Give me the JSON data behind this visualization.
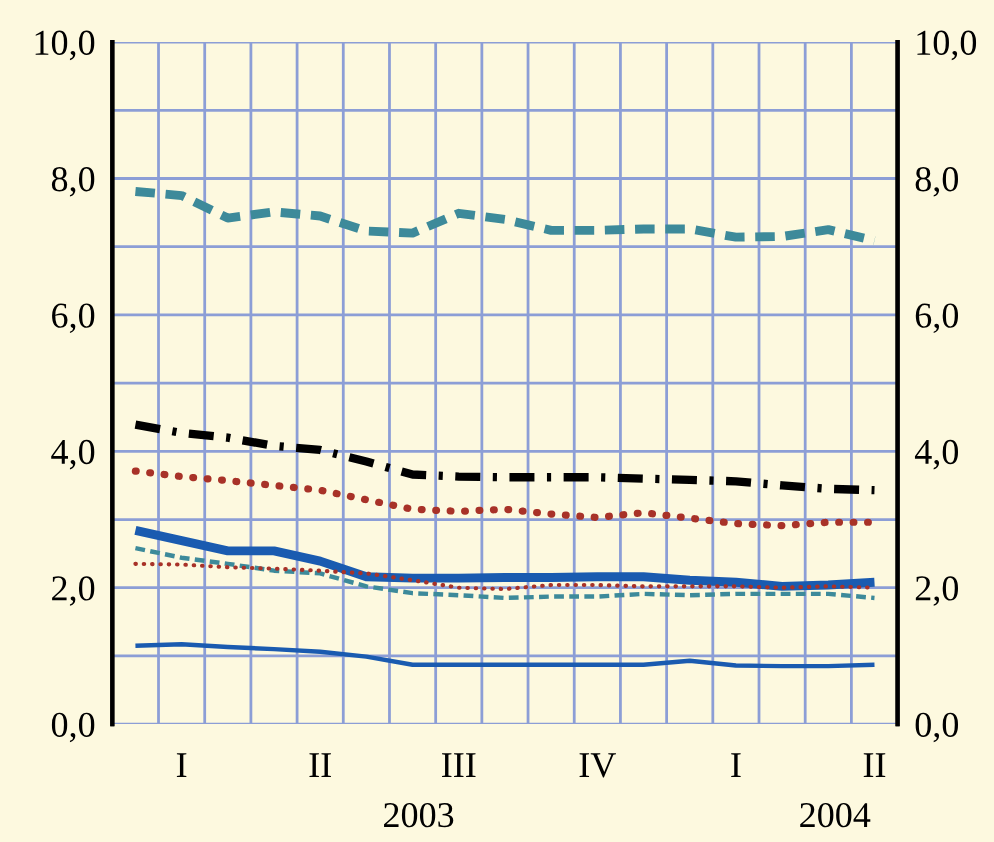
{
  "chart_data": {
    "type": "line",
    "categories": [
      null,
      "I",
      null,
      null,
      "II",
      null,
      null,
      "III",
      null,
      null,
      "IV",
      null,
      null,
      "I",
      null,
      null,
      "II"
    ],
    "ylim": [
      0,
      10
    ],
    "yticks": [
      {
        "value": 0,
        "label": "0,0"
      },
      {
        "value": 1,
        "label": null
      },
      {
        "value": 2,
        "label": "2,0"
      },
      {
        "value": 3,
        "label": null
      },
      {
        "value": 4,
        "label": "4,0"
      },
      {
        "value": 5,
        "label": null
      },
      {
        "value": 6,
        "label": "6,0"
      },
      {
        "value": 7,
        "label": null
      },
      {
        "value": 8,
        "label": "8,0"
      },
      {
        "value": 9,
        "label": null
      },
      {
        "value": 10,
        "label": "10,0"
      }
    ],
    "y2lim": [
      0,
      10
    ],
    "y2ticks": [
      {
        "value": 0,
        "label": "0,0"
      },
      {
        "value": 2,
        "label": "2,0"
      },
      {
        "value": 4,
        "label": "4,0"
      },
      {
        "value": 6,
        "label": "6,0"
      },
      {
        "value": 8,
        "label": "8,0"
      },
      {
        "value": 10,
        "label": "10,0"
      }
    ],
    "grid": true,
    "legend": false,
    "annotations": [
      "2003",
      "2004"
    ],
    "series": [
      {
        "color": "#3d8a9a",
        "line_style": "dashed",
        "values": [
          7.81,
          7.75,
          7.42,
          7.51,
          7.45,
          7.23,
          7.2,
          7.49,
          7.4,
          7.24,
          7.24,
          7.26,
          7.26,
          7.14,
          7.15,
          7.25,
          7.09
        ]
      },
      {
        "color": "#000000",
        "line_style": "dashdot",
        "values": [
          4.39,
          4.27,
          4.2,
          4.08,
          4.02,
          3.85,
          3.66,
          3.63,
          3.62,
          3.62,
          3.62,
          3.6,
          3.58,
          3.56,
          3.5,
          3.45,
          3.43
        ]
      },
      {
        "color": "#a83228",
        "line_style": "dotted",
        "values": [
          3.71,
          3.63,
          3.57,
          3.5,
          3.43,
          3.29,
          3.15,
          3.12,
          3.15,
          3.08,
          3.03,
          3.1,
          3.02,
          2.94,
          2.91,
          2.96,
          2.96
        ]
      },
      {
        "color": "#1a5bb0",
        "line_style": "solid",
        "values": [
          2.84,
          2.69,
          2.54,
          2.54,
          2.39,
          2.16,
          2.14,
          2.14,
          2.15,
          2.15,
          2.16,
          2.16,
          2.11,
          2.08,
          2.02,
          2.04,
          2.08
        ]
      },
      {
        "color": "#3d8a9a",
        "line_style": "dashed",
        "values": [
          2.58,
          2.44,
          2.35,
          2.25,
          2.21,
          2.02,
          1.92,
          1.89,
          1.85,
          1.87,
          1.87,
          1.91,
          1.89,
          1.91,
          1.91,
          1.91,
          1.85
        ]
      },
      {
        "color": "#a83228",
        "line_style": "dotted",
        "values": [
          2.35,
          2.34,
          2.3,
          2.28,
          2.25,
          2.21,
          2.11,
          2.0,
          1.98,
          2.04,
          2.04,
          2.02,
          2.02,
          2.02,
          2.0,
          2.02,
          2.0
        ]
      },
      {
        "color": "#1a5bb0",
        "line_style": "solid",
        "values": [
          1.15,
          1.17,
          1.13,
          1.1,
          1.06,
          0.99,
          0.87,
          0.87,
          0.87,
          0.87,
          0.87,
          0.87,
          0.93,
          0.86,
          0.85,
          0.85,
          0.87
        ]
      }
    ]
  }
}
